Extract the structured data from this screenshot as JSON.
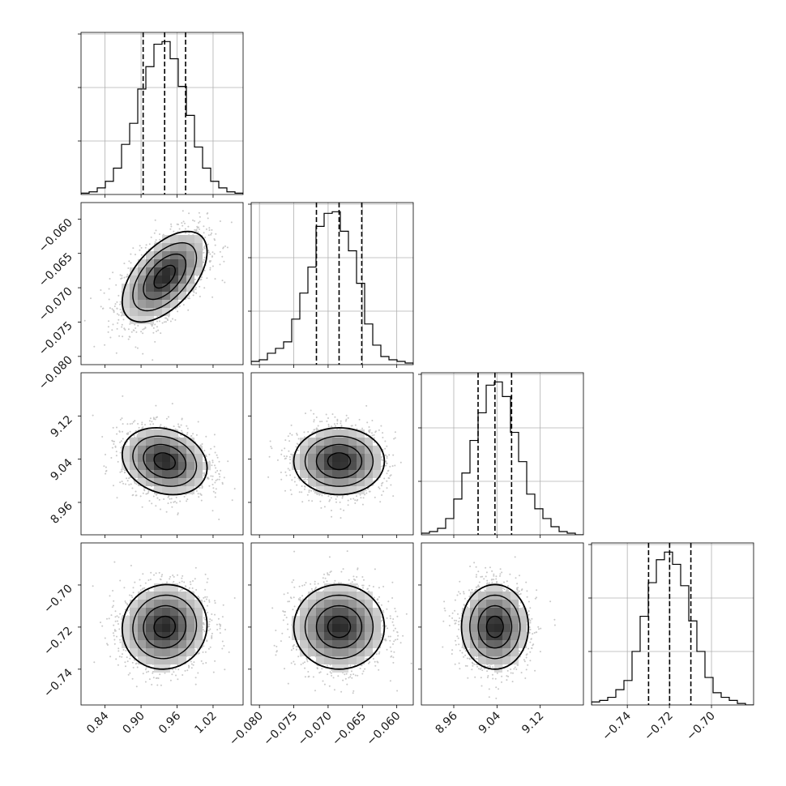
{
  "chart_data": {
    "type": "corner",
    "parameters": [
      {
        "ticks": [
          0.84,
          0.9,
          0.96,
          1.02
        ],
        "tick_labels": [
          "0.84",
          "0.90",
          "0.96",
          "1.02"
        ],
        "range": [
          0.8,
          1.07
        ]
      },
      {
        "ticks": [
          -0.08,
          -0.075,
          -0.07,
          -0.065,
          -0.06
        ],
        "tick_labels": [
          "−0.080",
          "−0.075",
          "−0.070",
          "−0.065",
          "−0.060"
        ],
        "range": [
          -0.0812,
          -0.0576
        ]
      },
      {
        "ticks": [
          8.96,
          9.04,
          9.12
        ],
        "tick_labels": [
          "8.96",
          "9.04",
          "9.12"
        ],
        "range": [
          8.9,
          9.2
        ]
      },
      {
        "ticks": [
          -0.74,
          -0.72,
          -0.7
        ],
        "tick_labels": [
          "−0.74",
          "−0.72",
          "−0.70"
        ],
        "range": [
          -0.757,
          -0.68
        ]
      }
    ],
    "quantiles": [
      [
        0.9035,
        0.9393,
        0.9742
      ],
      [
        -0.0717,
        -0.0684,
        -0.0651
      ],
      [
        9.005,
        9.0362,
        9.067
      ],
      [
        -0.7299,
        -0.7199,
        -0.7098
      ]
    ],
    "histograms": [
      {
        "bin_start": 0.8,
        "bin_width": 0.0135,
        "counts": [
          1,
          2,
          5,
          10,
          20,
          38,
          54,
          80,
          97,
          114,
          116,
          103,
          82,
          60,
          36,
          20,
          10,
          5,
          2,
          1
        ]
      },
      {
        "bin_start": -0.0812,
        "bin_width": 0.00118,
        "counts": [
          2,
          3,
          7,
          10,
          14,
          28,
          44,
          60,
          85,
          93,
          94,
          82,
          70,
          50,
          25,
          12,
          5,
          3,
          2,
          1
        ]
      },
      {
        "bin_start": 8.9,
        "bin_width": 0.015,
        "counts": [
          1,
          2,
          4,
          10,
          22,
          38,
          58,
          75,
          92,
          94,
          85,
          63,
          45,
          25,
          16,
          10,
          5,
          2,
          1,
          0
        ]
      },
      {
        "bin_start": -0.757,
        "bin_width": 0.00385,
        "counts": [
          2,
          3,
          5,
          10,
          16,
          35,
          58,
          80,
          95,
          100,
          92,
          78,
          55,
          35,
          18,
          8,
          5,
          3,
          1,
          0
        ]
      }
    ],
    "correlations": [
      [
        1.0,
        0.55,
        -0.2,
        0.05
      ],
      [
        0.55,
        1.0,
        0.0,
        0.0
      ],
      [
        -0.2,
        0.0,
        1.0,
        0.0
      ],
      [
        0.05,
        0.0,
        0.0,
        1.0
      ]
    ],
    "hist_tick_fractions": [
      0.33,
      0.66,
      0.99
    ]
  }
}
